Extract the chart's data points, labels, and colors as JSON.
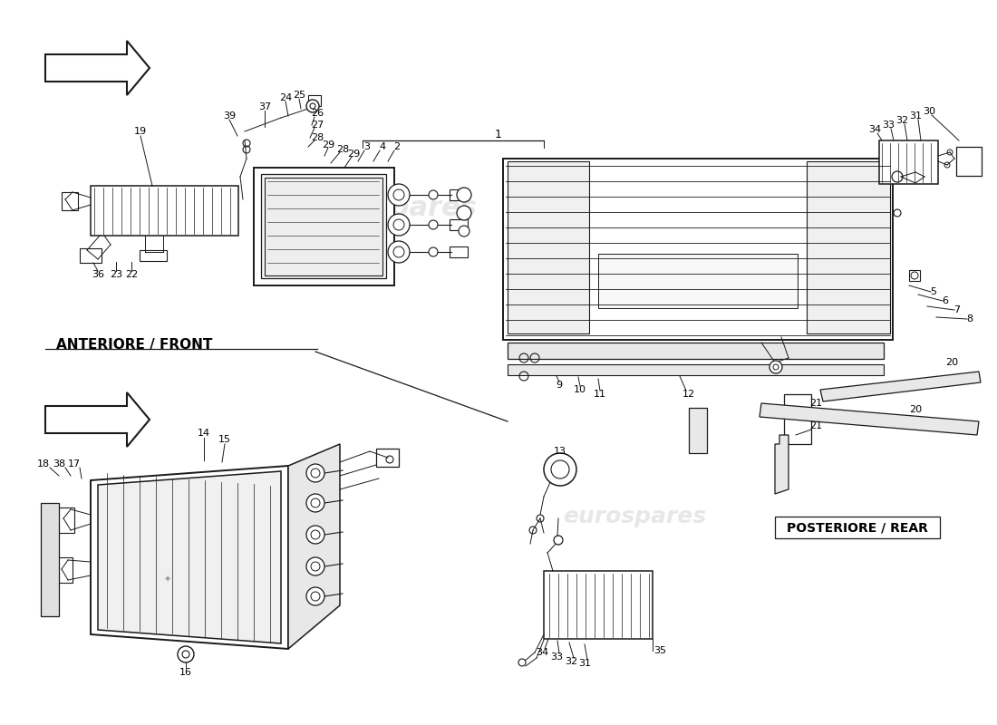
{
  "bg_color": "#ffffff",
  "line_color": "#1a1a1a",
  "text_color": "#000000",
  "watermark_text": "eurospares",
  "watermark_color": "#bbbbbb",
  "watermark_alpha": 0.35,
  "front_label": "ANTERIORE / FRONT",
  "rear_label": "POSTERIORE / REAR",
  "label_fontsize": 11,
  "parts_fontsize": 8,
  "leader_lw": 0.7,
  "component_lw": 1.1,
  "thin_lw": 0.5
}
